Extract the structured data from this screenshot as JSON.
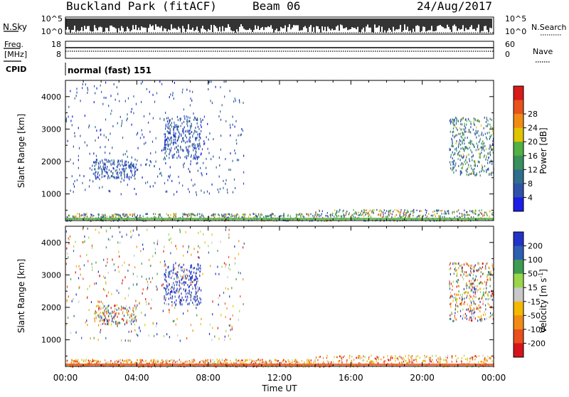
{
  "header": {
    "station": "Buckland Park (fitACF)",
    "beam": "Beam 06",
    "date": "24/Aug/2017"
  },
  "panels": {
    "nsky": {
      "label": "N.Sky",
      "tick_top": "10^5",
      "tick_bottom": "10^0",
      "right_label": "N.Search",
      "right_tick_top": "10^5",
      "right_tick_bottom": "10^0"
    },
    "freq": {
      "label_line1": "Freq.",
      "label_line2": "[MHz]",
      "tick_top": "18",
      "tick_bottom": "8",
      "right_label": "Nave",
      "right_tick_top": "60",
      "right_tick_bottom": "0"
    },
    "cpid": {
      "label": "CPID",
      "value": "normal (fast) 151"
    }
  },
  "axis": {
    "xlabel": "Time UT",
    "xticks": [
      "00:00",
      "04:00",
      "08:00",
      "12:00",
      "16:00",
      "20:00",
      "00:00"
    ],
    "ylabel": "Slant Range [km]",
    "yticks": [
      "1000",
      "2000",
      "3000",
      "4000"
    ]
  },
  "colors": {
    "power": [
      "#1d1de6",
      "#2f52a8",
      "#2f6e8c",
      "#3a8f5c",
      "#52b044",
      "#e0c400",
      "#f08c14",
      "#e8531c",
      "#d81a1a"
    ],
    "velocity": [
      "#d8141b",
      "#ea4f1d",
      "#f18b16",
      "#f3b800",
      "#c8c8c8",
      "#9ad64a",
      "#3d9c52",
      "#2d5fb2",
      "#2233c8"
    ]
  },
  "chart_data": [
    {
      "type": "heatmap",
      "title": "Power",
      "colorbar_label": "Power [dB]",
      "colorbar_ticks": [
        "4",
        "8",
        "12",
        "16",
        "20",
        "24",
        "28"
      ],
      "xlabel": "",
      "ylabel": "Slant Range [km]",
      "x_range_hours": [
        0,
        24
      ],
      "ylim": [
        180,
        4500
      ],
      "features": [
        {
          "region": "ground scatter band",
          "x_hours": [
            0,
            24
          ],
          "range_km": [
            180,
            400
          ],
          "value_db": "4-28"
        },
        {
          "region": "early cluster",
          "x_hours": [
            1.5,
            4
          ],
          "range_km": [
            1500,
            2100
          ],
          "value_db": "4-8"
        },
        {
          "region": "midnight-morning cluster",
          "x_hours": [
            5.5,
            7.5
          ],
          "range_km": [
            2100,
            3400
          ],
          "value_db": "4-12"
        },
        {
          "region": "sparse scatter",
          "x_hours": [
            0,
            10
          ],
          "range_km": [
            1000,
            4500
          ],
          "value_db": "4-8"
        },
        {
          "region": "evening cluster",
          "x_hours": [
            21.5,
            24
          ],
          "range_km": [
            1600,
            3400
          ],
          "value_db": "4-20"
        }
      ]
    },
    {
      "type": "heatmap",
      "title": "Velocity",
      "colorbar_label": "Velocity [m s^-1]",
      "colorbar_ticks": [
        "200",
        "100",
        "50",
        "15",
        "-15",
        "-50",
        "-100",
        "-200"
      ],
      "xlabel": "Time UT",
      "ylabel": "Slant Range [km]",
      "x_range_hours": [
        0,
        24
      ],
      "ylim": [
        180,
        4500
      ],
      "features": [
        {
          "region": "ground scatter band",
          "x_hours": [
            0,
            24
          ],
          "range_km": [
            180,
            400
          ],
          "value_ms": "-200 to 50"
        },
        {
          "region": "early cluster",
          "x_hours": [
            1.5,
            4
          ],
          "range_km": [
            1500,
            2100
          ],
          "value_ms": "-100 to 200"
        },
        {
          "region": "midnight-morning cluster",
          "x_hours": [
            5.5,
            7.5
          ],
          "range_km": [
            2100,
            3400
          ],
          "value_ms": "100 to 200"
        },
        {
          "region": "sparse scatter",
          "x_hours": [
            0,
            10
          ],
          "range_km": [
            1000,
            4500
          ],
          "value_ms": "-200 to 200"
        },
        {
          "region": "evening cluster",
          "x_hours": [
            21.5,
            24
          ],
          "range_km": [
            1600,
            3400
          ],
          "value_ms": "-200 to 200"
        }
      ]
    }
  ]
}
